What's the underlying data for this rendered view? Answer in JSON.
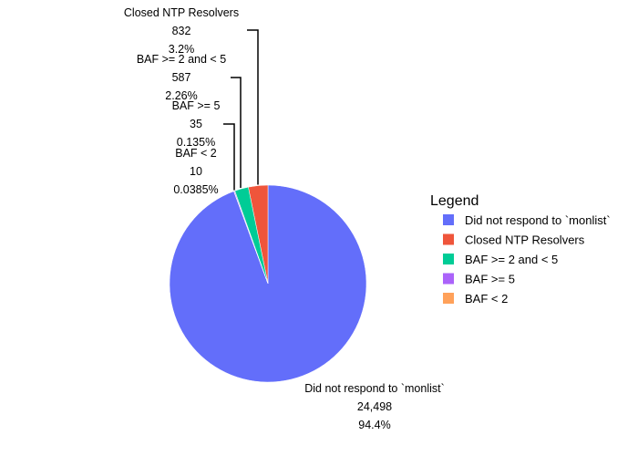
{
  "chart_data": {
    "type": "pie",
    "legend_title": "Legend",
    "legend_position": "right",
    "slices": [
      {
        "label": "Did not respond to `monlist`",
        "value": 24498,
        "value_text": "24,498",
        "percent_text": "94.4%",
        "color": "#636efa"
      },
      {
        "label": "Closed NTP Resolvers",
        "value": 832,
        "value_text": "832",
        "percent_text": "3.2%",
        "color": "#ef553b"
      },
      {
        "label": "BAF >= 2 and < 5",
        "value": 587,
        "value_text": "587",
        "percent_text": "2.26%",
        "color": "#00cc96"
      },
      {
        "label": "BAF >= 5",
        "value": 35,
        "value_text": "35",
        "percent_text": "0.135%",
        "color": "#ab63fa"
      },
      {
        "label": "BAF < 2",
        "value": 10,
        "value_text": "10",
        "percent_text": "0.0385%",
        "color": "#ffa15a"
      }
    ]
  }
}
